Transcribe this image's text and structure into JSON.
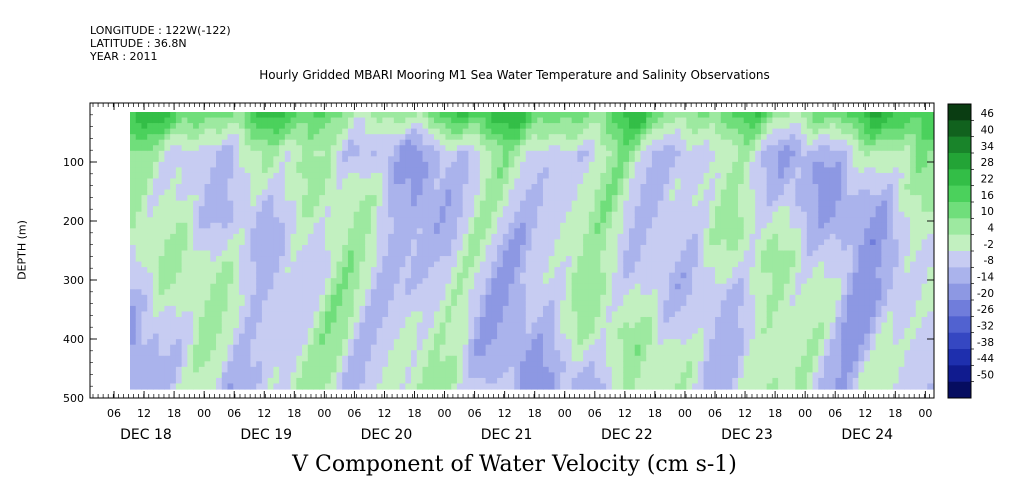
{
  "header": {
    "longitude": "LONGITUDE : 122W(-122)",
    "latitude": "LATITUDE : 36.8N",
    "year": "YEAR : 2011"
  },
  "chart_data": {
    "type": "heatmap",
    "title": "Hourly Gridded MBARI Mooring M1 Sea Water Temperature and Salinity Observations",
    "bottom_title": "V Component of Water Velocity (cm s-1)",
    "xlabel": "",
    "ylabel": "DEPTH (m)",
    "y_axis": {
      "range": [
        500,
        0
      ],
      "inverted": true,
      "ticks": [
        100,
        200,
        300,
        400,
        500
      ]
    },
    "x_axis": {
      "hour_ticks": [
        "06",
        "12",
        "18",
        "00",
        "06",
        "12",
        "18",
        "00",
        "06",
        "12",
        "18",
        "00",
        "06",
        "12",
        "18",
        "00",
        "06",
        "12",
        "18",
        "00",
        "06",
        "12",
        "18",
        "00",
        "06",
        "12",
        "18",
        "00"
      ],
      "day_labels": [
        "DEC 18",
        "DEC 19",
        "DEC 20",
        "DEC 21",
        "DEC 22",
        "DEC 23",
        "DEC 24"
      ]
    },
    "colorbar": {
      "labels": [
        "46",
        "40",
        "34",
        "28",
        "22",
        "16",
        "10",
        "4",
        "-2",
        "-8",
        "-14",
        "-20",
        "-26",
        "-32",
        "-38",
        "-44",
        "-50"
      ],
      "colors": [
        "#0a3d12",
        "#11621e",
        "#19842a",
        "#23a436",
        "#33be47",
        "#4bd15c",
        "#70de7b",
        "#9de9a0",
        "#c2f0c0",
        "#c7ccf2",
        "#aab3ec",
        "#8d98e3",
        "#707ddb",
        "#5162d0",
        "#3547c2",
        "#1e2fae",
        "#101b8f",
        "#060d60"
      ]
    },
    "grid": false,
    "legend": "right"
  }
}
